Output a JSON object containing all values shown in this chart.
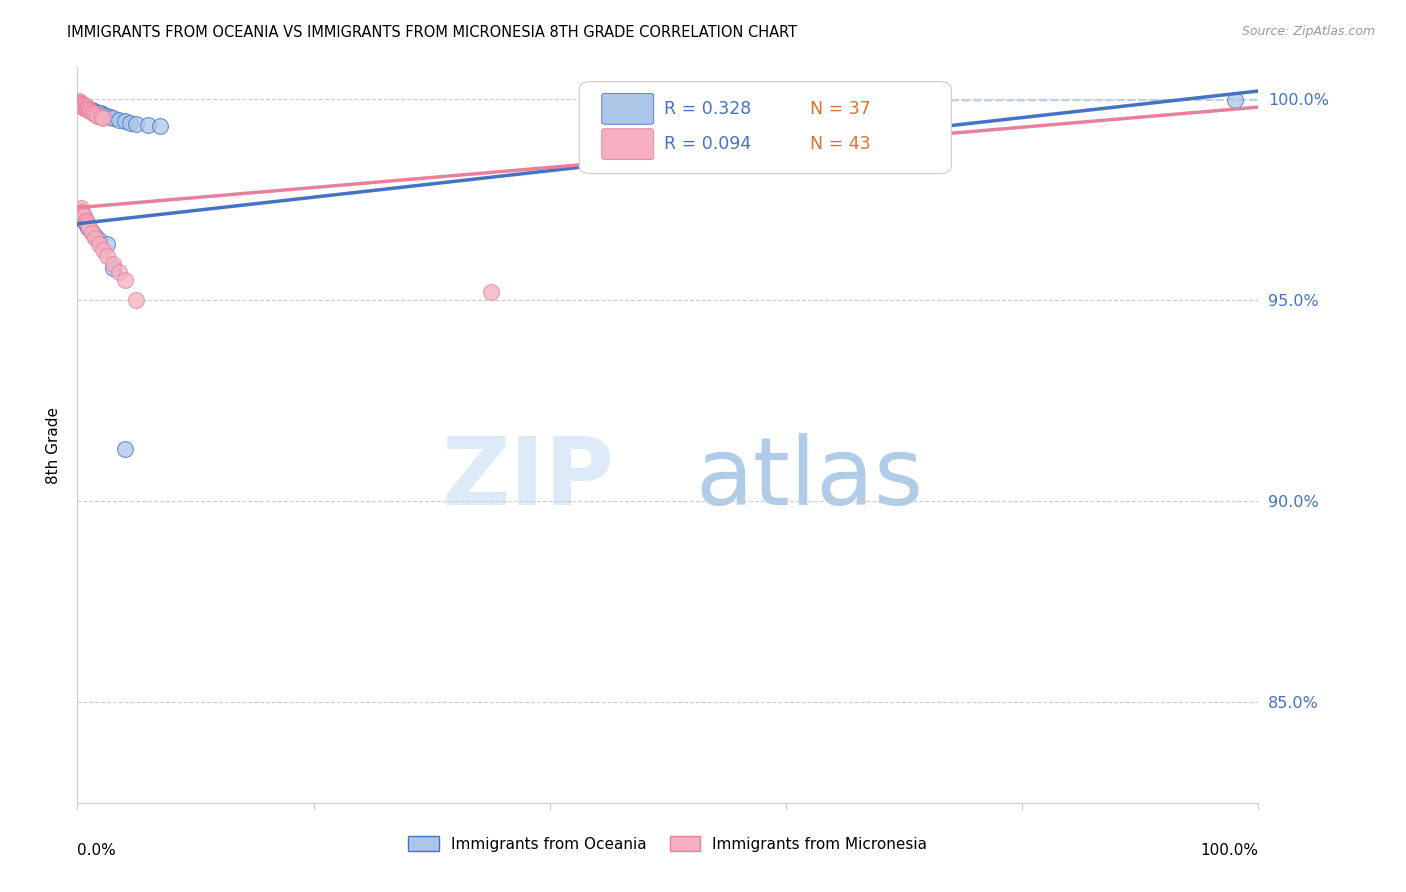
{
  "title": "IMMIGRANTS FROM OCEANIA VS IMMIGRANTS FROM MICRONESIA 8TH GRADE CORRELATION CHART",
  "source": "Source: ZipAtlas.com",
  "ylabel": "8th Grade",
  "yticks_labels": [
    "85.0%",
    "90.0%",
    "95.0%",
    "100.0%"
  ],
  "ytick_vals": [
    0.85,
    0.9,
    0.95,
    1.0
  ],
  "legend_blue_label": "Immigrants from Oceania",
  "legend_pink_label": "Immigrants from Micronesia",
  "r_blue": 0.328,
  "n_blue": 37,
  "r_pink": 0.094,
  "n_pink": 43,
  "blue_scatter_color": "#adc6e8",
  "pink_scatter_color": "#f5afc0",
  "line_blue_color": "#4472c4",
  "line_pink_color": "#e8809a",
  "line_dashed_color": "#b8cfe8",
  "xlim": [
    0.0,
    1.0
  ],
  "ylim": [
    0.825,
    1.008
  ],
  "blue_x": [
    0.001,
    0.002,
    0.003,
    0.004,
    0.005,
    0.006,
    0.007,
    0.008,
    0.009,
    0.01,
    0.012,
    0.014,
    0.016,
    0.018,
    0.02,
    0.022,
    0.025,
    0.028,
    0.03,
    0.035,
    0.04,
    0.045,
    0.05,
    0.06,
    0.07,
    0.003,
    0.005,
    0.007,
    0.009,
    0.012,
    0.015,
    0.018,
    0.025,
    0.03,
    0.04,
    0.7,
    0.98
  ],
  "blue_y": [
    0.999,
    0.9988,
    0.9985,
    0.9985,
    0.9982,
    0.998,
    0.998,
    0.9978,
    0.9975,
    0.9975,
    0.9972,
    0.997,
    0.9968,
    0.9965,
    0.9965,
    0.996,
    0.9958,
    0.9955,
    0.9952,
    0.9948,
    0.9945,
    0.994,
    0.9938,
    0.9935,
    0.9932,
    0.972,
    0.97,
    0.969,
    0.968,
    0.967,
    0.966,
    0.965,
    0.964,
    0.958,
    0.913,
    0.9998,
    0.9998
  ],
  "pink_x": [
    0.001,
    0.001,
    0.002,
    0.002,
    0.003,
    0.003,
    0.004,
    0.004,
    0.005,
    0.005,
    0.006,
    0.006,
    0.007,
    0.007,
    0.008,
    0.008,
    0.009,
    0.01,
    0.011,
    0.012,
    0.013,
    0.015,
    0.017,
    0.02,
    0.022,
    0.003,
    0.004,
    0.005,
    0.006,
    0.007,
    0.008,
    0.009,
    0.01,
    0.012,
    0.015,
    0.018,
    0.022,
    0.025,
    0.03,
    0.035,
    0.04,
    0.05,
    0.35
  ],
  "pink_y": [
    0.9995,
    0.999,
    0.999,
    0.9985,
    0.999,
    0.9985,
    0.9988,
    0.9982,
    0.9985,
    0.998,
    0.9985,
    0.9978,
    0.9982,
    0.9975,
    0.998,
    0.9975,
    0.9975,
    0.9972,
    0.997,
    0.9968,
    0.9965,
    0.9962,
    0.9958,
    0.9955,
    0.9952,
    0.973,
    0.972,
    0.9715,
    0.971,
    0.97,
    0.9695,
    0.9688,
    0.968,
    0.9668,
    0.9655,
    0.964,
    0.9625,
    0.961,
    0.959,
    0.957,
    0.955,
    0.95,
    0.952
  ]
}
